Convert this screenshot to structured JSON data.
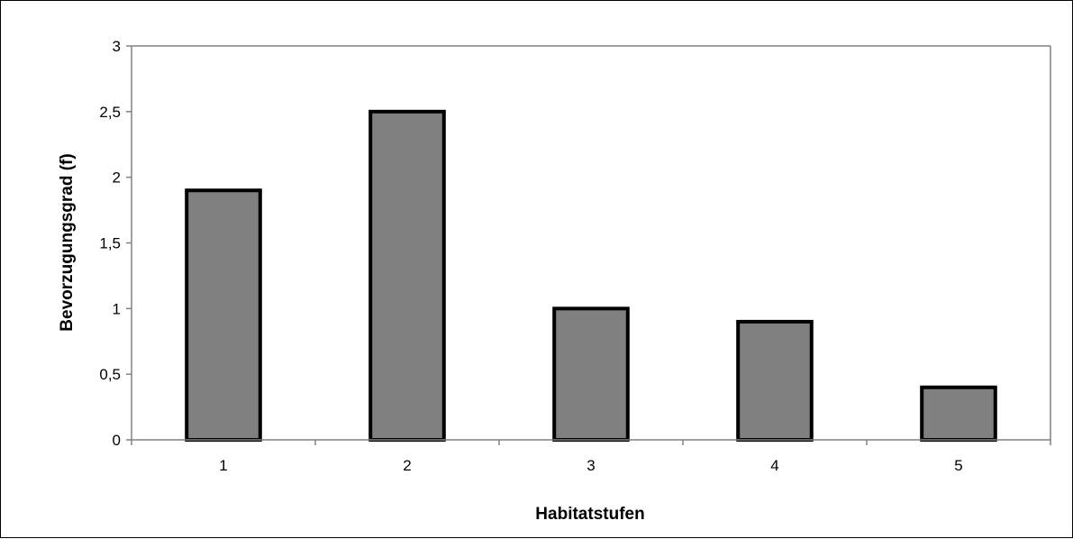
{
  "chart_data": {
    "type": "bar",
    "title": "",
    "xlabel": "Habitatstufen",
    "ylabel": "Bevorzugungsgrad (f)",
    "categories": [
      "1",
      "2",
      "3",
      "4",
      "5"
    ],
    "values": [
      1.9,
      2.5,
      1.0,
      0.9,
      0.4
    ],
    "ylim": [
      0,
      3
    ],
    "yticks": [
      0,
      0.5,
      1,
      1.5,
      2,
      2.5,
      3
    ],
    "ytick_labels": [
      "0",
      "0,5",
      "1",
      "1,5",
      "2",
      "2,5",
      "3"
    ],
    "grid": false,
    "legend": "none",
    "colors": {
      "bar_fill": "#808080",
      "bar_stroke": "#000000",
      "axis": "#808080",
      "text": "#000000"
    }
  }
}
